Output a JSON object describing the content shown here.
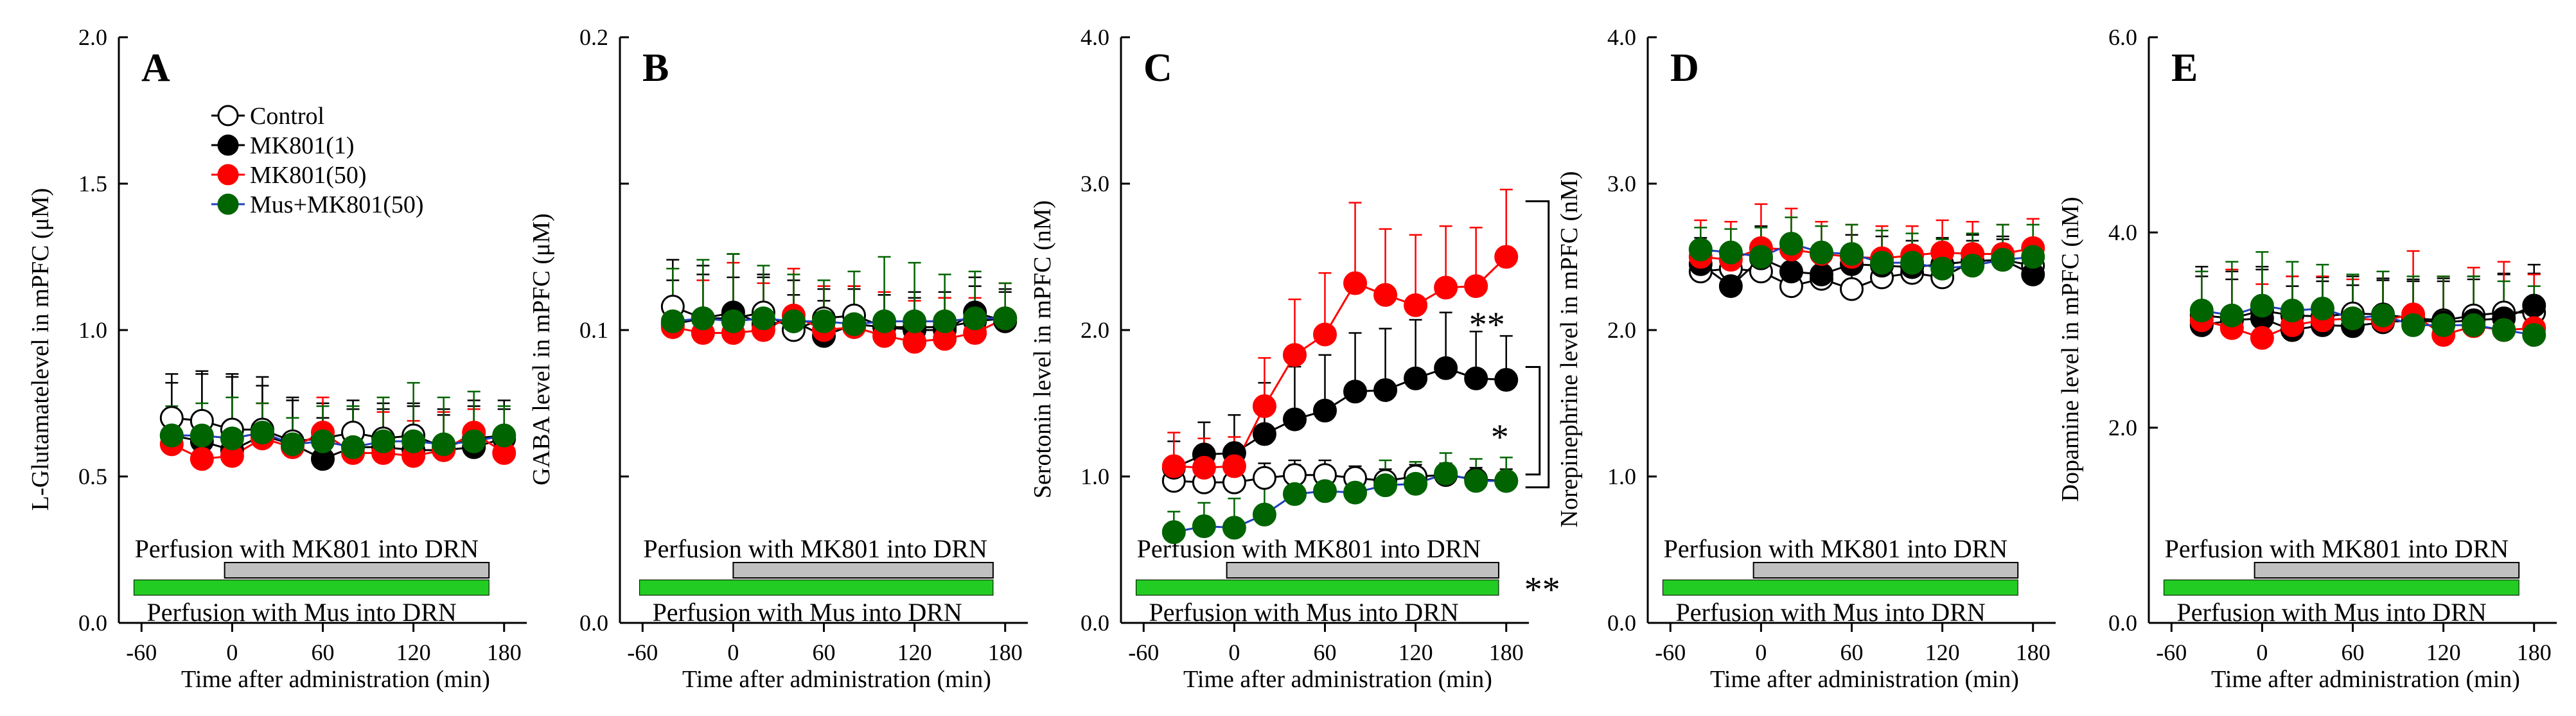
{
  "chart_data": {
    "type": "line",
    "x_label": "Time after administration (min)",
    "x_ticks": [
      -60,
      0,
      60,
      120,
      180
    ],
    "x_range": [
      -75,
      195
    ],
    "legend": [
      {
        "key": "control",
        "label": "Control"
      },
      {
        "key": "mk1",
        "label": "MK801(1)"
      },
      {
        "key": "mk50",
        "label": "MK801(50)"
      },
      {
        "key": "mus",
        "label": "Mus+MK801(50)"
      }
    ],
    "series_style": {
      "control": {
        "marker_fill": "#ffffff",
        "marker_edge": "#000000",
        "line": "#000000",
        "err": "#000000"
      },
      "mk1": {
        "marker_fill": "#000000",
        "marker_edge": "#000000",
        "line": "#000000",
        "err": "#000000"
      },
      "mk50": {
        "marker_fill": "#ff0000",
        "marker_edge": "#ff0000",
        "line": "#ff0000",
        "err": "#ff0000"
      },
      "mus": {
        "marker_fill": "#006400",
        "marker_edge": "#006400",
        "line": "#1f3fbf",
        "err": "#006400"
      }
    },
    "bars": {
      "mk801": {
        "label": "Perfusion with MK801 into DRN",
        "start": 0,
        "end": 180,
        "color": "#c0c0c0"
      },
      "mus": {
        "label": "Perfusion with Mus into DRN",
        "start": -60,
        "end": 180,
        "color": "#22cc22"
      }
    },
    "panels": [
      {
        "letter": "A",
        "ylabel": "L-Glutamatelevel in mPFC (μM)",
        "ylim": [
          0,
          2.0
        ],
        "y_ticks": [
          "0.0",
          "0.5",
          "1.0",
          "1.5",
          "2.0"
        ],
        "show_legend": true,
        "x": [
          -40,
          -20,
          0,
          20,
          40,
          60,
          80,
          100,
          120,
          140,
          160,
          180
        ],
        "series": {
          "control": {
            "values": [
              0.7,
              0.69,
              0.66,
              0.66,
              0.62,
              0.63,
              0.65,
              0.63,
              0.64,
              0.6,
              0.63,
              0.64
            ],
            "err": [
              0.15,
              0.16,
              0.18,
              0.15,
              0.14,
              0.12,
              0.11,
              0.12,
              0.11,
              0.11,
              0.13,
              0.12
            ]
          },
          "mk1": {
            "values": [
              0.64,
              0.62,
              0.59,
              0.64,
              0.61,
              0.56,
              0.6,
              0.6,
              0.59,
              0.59,
              0.6,
              0.63
            ],
            "err": [
              0.18,
              0.24,
              0.26,
              0.2,
              0.16,
              0.14,
              0.13,
              0.13,
              0.15,
              0.14,
              0.14,
              0.1
            ]
          },
          "mk50": {
            "values": [
              0.61,
              0.56,
              0.57,
              0.63,
              0.6,
              0.65,
              0.58,
              0.58,
              0.57,
              0.59,
              0.65,
              0.58
            ],
            "err": [
              0.1,
              0.16,
              0.12,
              0.12,
              0.1,
              0.12,
              0.1,
              0.14,
              0.12,
              0.13,
              0.08,
              0.09
            ]
          },
          "mus": {
            "values": [
              0.64,
              0.64,
              0.63,
              0.65,
              0.61,
              0.62,
              0.6,
              0.62,
              0.62,
              0.61,
              0.62,
              0.64
            ],
            "err": [
              0.1,
              0.11,
              0.14,
              0.1,
              0.09,
              0.12,
              0.14,
              0.15,
              0.2,
              0.16,
              0.17,
              0.1
            ]
          }
        },
        "bars": {
          "mk801": {
            "start": -5,
            "end": 170
          },
          "mus": {
            "start": -65,
            "end": 170
          }
        }
      },
      {
        "letter": "B",
        "ylabel": "GABA level in mPFC (μM)",
        "ylim": [
          0,
          0.2
        ],
        "y_ticks": [
          "0.0",
          "",
          "0.1",
          "",
          "0.2"
        ],
        "show_legend": false,
        "x": [
          -40,
          -20,
          0,
          20,
          40,
          60,
          80,
          100,
          120,
          140,
          160,
          180
        ],
        "series": {
          "control": {
            "values": [
              0.108,
              0.104,
              0.104,
              0.106,
              0.1,
              0.104,
              0.105,
              0.101,
              0.101,
              0.101,
              0.103,
              0.104
            ],
            "err": [
              0.016,
              0.015,
              0.014,
              0.013,
              0.012,
              0.01,
              0.01,
              0.011,
              0.01,
              0.012,
              0.012,
              0.01
            ]
          },
          "mk1": {
            "values": [
              0.102,
              0.104,
              0.106,
              0.102,
              0.103,
              0.098,
              0.102,
              0.101,
              0.1,
              0.1,
              0.106,
              0.103
            ],
            "err": [
              0.015,
              0.018,
              0.02,
              0.016,
              0.014,
              0.012,
              0.012,
              0.012,
              0.013,
              0.011,
              0.012,
              0.01
            ]
          },
          "mk50": {
            "values": [
              0.101,
              0.099,
              0.099,
              0.1,
              0.105,
              0.1,
              0.101,
              0.098,
              0.096,
              0.097,
              0.099,
              0.104
            ],
            "err": [
              0.02,
              0.018,
              0.024,
              0.016,
              0.016,
              0.015,
              0.014,
              0.015,
              0.014,
              0.014,
              0.012,
              0.012
            ]
          },
          "mus": {
            "values": [
              0.103,
              0.104,
              0.103,
              0.104,
              0.103,
              0.103,
              0.102,
              0.103,
              0.103,
              0.103,
              0.104,
              0.104
            ],
            "err": [
              0.018,
              0.02,
              0.023,
              0.018,
              0.016,
              0.014,
              0.018,
              0.022,
              0.02,
              0.016,
              0.016,
              0.012
            ]
          }
        },
        "bars": {
          "mk801": {
            "start": 0,
            "end": 172
          },
          "mus": {
            "start": -62,
            "end": 172
          }
        }
      },
      {
        "letter": "C",
        "ylabel": "Serotonin level in mPFC (nM)",
        "ylim": [
          0,
          4.0
        ],
        "y_ticks": [
          "0.0",
          "1.0",
          "2.0",
          "3.0",
          "4.0"
        ],
        "show_legend": false,
        "x": [
          -40,
          -20,
          0,
          20,
          40,
          60,
          80,
          100,
          120,
          140,
          160,
          180
        ],
        "series": {
          "control": {
            "values": [
              0.97,
              0.96,
              0.96,
              0.99,
              1.01,
              1.01,
              0.99,
              0.97,
              1.0,
              1.01,
              0.98,
              0.97
            ],
            "err": [
              0.1,
              0.1,
              0.1,
              0.1,
              0.1,
              0.1,
              0.08,
              0.08,
              0.08,
              0.08,
              0.08,
              0.08
            ]
          },
          "mk1": {
            "values": [
              1.06,
              1.15,
              1.16,
              1.29,
              1.39,
              1.45,
              1.58,
              1.59,
              1.67,
              1.74,
              1.67,
              1.66
            ],
            "err": [
              0.18,
              0.22,
              0.26,
              0.35,
              0.36,
              0.38,
              0.4,
              0.42,
              0.4,
              0.38,
              0.32,
              0.3
            ]
          },
          "mk50": {
            "values": [
              1.07,
              1.06,
              1.07,
              1.48,
              1.83,
              1.97,
              2.32,
              2.24,
              2.17,
              2.29,
              2.3,
              2.5
            ],
            "err": [
              0.23,
              0.2,
              0.2,
              0.33,
              0.38,
              0.42,
              0.55,
              0.45,
              0.48,
              0.42,
              0.4,
              0.46
            ]
          },
          "mus": {
            "values": [
              0.62,
              0.66,
              0.65,
              0.74,
              0.88,
              0.9,
              0.89,
              0.94,
              0.95,
              1.02,
              0.97,
              0.97
            ],
            "err": [
              0.14,
              0.16,
              0.2,
              0.2,
              0.2,
              0.17,
              0.16,
              0.17,
              0.15,
              0.14,
              0.15,
              0.16
            ]
          }
        },
        "bars": {
          "mk801": {
            "start": -5,
            "end": 175
          },
          "mus": {
            "start": -65,
            "end": 175
          }
        },
        "sig_marks": [
          "**",
          "*",
          "**"
        ]
      },
      {
        "letter": "D",
        "ylabel": "Norepinephrine level in mPFC (nM)",
        "ylim": [
          0,
          4.0
        ],
        "y_ticks": [
          "0.0",
          "1.0",
          "2.0",
          "3.0",
          "4.0"
        ],
        "show_legend": false,
        "x": [
          -40,
          -20,
          0,
          20,
          40,
          60,
          80,
          100,
          120,
          140,
          160,
          180
        ],
        "series": {
          "control": {
            "values": [
              2.4,
              2.42,
              2.4,
              2.3,
              2.35,
              2.28,
              2.36,
              2.39,
              2.36,
              2.47,
              2.48,
              2.44
            ],
            "err": [
              0.15,
              0.16,
              0.2,
              0.22,
              0.2,
              0.18,
              0.16,
              0.15,
              0.15,
              0.14,
              0.14,
              0.12
            ]
          },
          "mk1": {
            "values": [
              2.45,
              2.3,
              2.49,
              2.4,
              2.38,
              2.45,
              2.44,
              2.43,
              2.45,
              2.47,
              2.48,
              2.38
            ],
            "err": [
              0.18,
              0.2,
              0.22,
              0.25,
              0.2,
              0.2,
              0.2,
              0.18,
              0.18,
              0.18,
              0.16,
              0.16
            ]
          },
          "mk50": {
            "values": [
              2.5,
              2.48,
              2.56,
              2.55,
              2.52,
              2.5,
              2.49,
              2.51,
              2.53,
              2.52,
              2.52,
              2.56
            ],
            "err": [
              0.25,
              0.26,
              0.3,
              0.28,
              0.22,
              0.22,
              0.22,
              0.2,
              0.22,
              0.22,
              0.2,
              0.2
            ]
          },
          "mus": {
            "values": [
              2.55,
              2.53,
              2.5,
              2.59,
              2.53,
              2.52,
              2.46,
              2.46,
              2.42,
              2.44,
              2.48,
              2.5
            ],
            "err": [
              0.15,
              0.16,
              0.2,
              0.18,
              0.18,
              0.2,
              0.22,
              0.2,
              0.2,
              0.22,
              0.24,
              0.22
            ]
          }
        },
        "bars": {
          "mk801": {
            "start": -5,
            "end": 170
          },
          "mus": {
            "start": -65,
            "end": 170
          }
        }
      },
      {
        "letter": "E",
        "ylabel": "Dopamine level in mPFC (nM)",
        "ylim": [
          0,
          6.0
        ],
        "y_ticks": [
          "0.0",
          "2.0",
          "4.0",
          "6.0"
        ],
        "show_legend": false,
        "x": [
          -40,
          -20,
          0,
          20,
          40,
          60,
          80,
          100,
          120,
          140,
          160,
          180
        ],
        "series": {
          "control": {
            "values": [
              3.15,
              3.12,
              3.2,
              3.15,
              3.14,
              3.17,
              3.16,
              3.12,
              3.1,
              3.15,
              3.18,
              3.18
            ],
            "err": [
              0.4,
              0.4,
              0.45,
              0.4,
              0.4,
              0.38,
              0.35,
              0.38,
              0.4,
              0.4,
              0.4,
              0.4
            ]
          },
          "mk1": {
            "values": [
              3.05,
              3.1,
              3.12,
              3.0,
              3.05,
              3.04,
              3.08,
              3.1,
              3.08,
              3.1,
              3.12,
              3.25
            ],
            "err": [
              0.6,
              0.5,
              0.5,
              0.45,
              0.45,
              0.42,
              0.45,
              0.42,
              0.45,
              0.42,
              0.45,
              0.42
            ]
          },
          "mk50": {
            "values": [
              3.1,
              3.02,
              2.92,
              3.05,
              3.1,
              3.12,
              3.1,
              3.16,
              2.95,
              3.04,
              3.0,
              3.02
            ],
            "err": [
              0.5,
              0.6,
              0.55,
              0.5,
              0.45,
              0.4,
              0.5,
              0.65,
              0.6,
              0.6,
              0.7,
              0.55
            ]
          },
          "mus": {
            "values": [
              3.2,
              3.15,
              3.25,
              3.2,
              3.22,
              3.12,
              3.15,
              3.05,
              3.05,
              3.05,
              3.0,
              2.95
            ],
            "err": [
              0.4,
              0.55,
              0.55,
              0.5,
              0.45,
              0.45,
              0.45,
              0.5,
              0.5,
              0.5,
              0.5,
              0.5
            ]
          }
        },
        "bars": {
          "mk801": {
            "start": -5,
            "end": 170
          },
          "mus": {
            "start": -65,
            "end": 170
          }
        }
      }
    ]
  }
}
